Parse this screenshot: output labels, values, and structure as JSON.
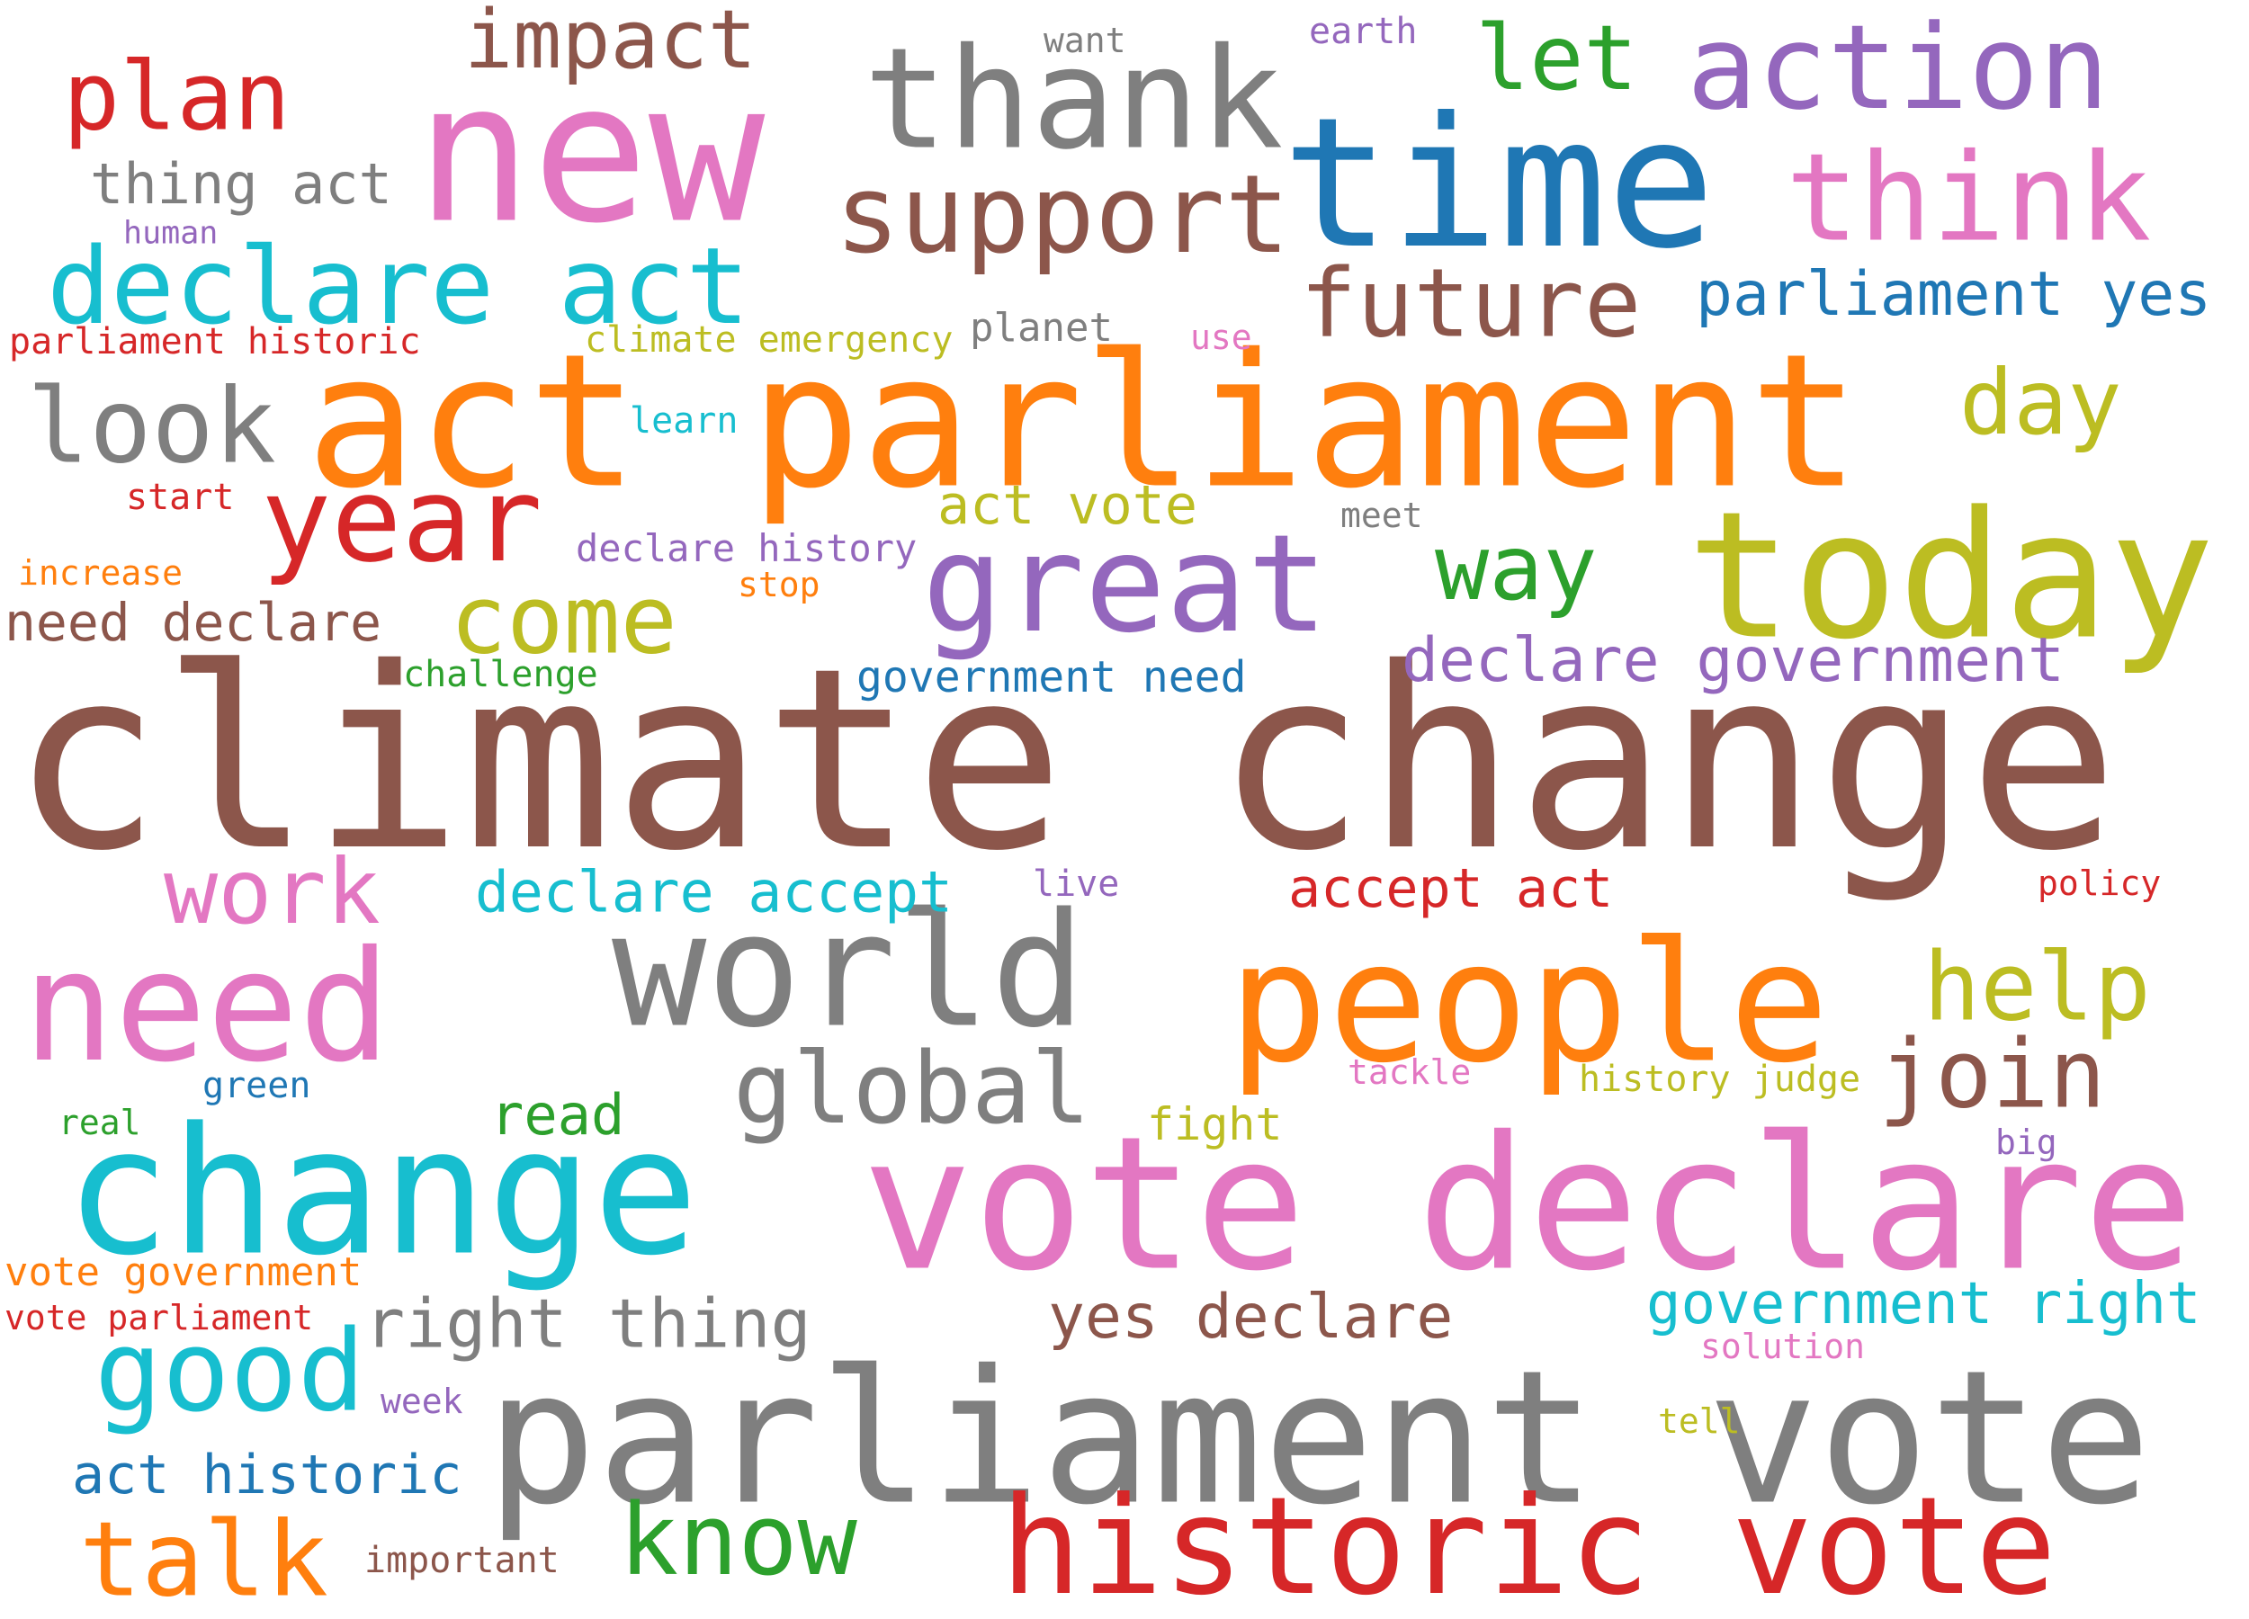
{
  "background": "#ffffff",
  "palette": {
    "brown": "#8c564b",
    "gray": "#7f7f7f",
    "orange": "#ff7f0e",
    "pink": "#e377c2",
    "red": "#d62728",
    "blue": "#1f77b4",
    "cyan": "#17becf",
    "olive": "#bcbd22",
    "green": "#2ca02c",
    "purple": "#9467bd"
  },
  "words": [
    {
      "text": "climate change",
      "color": "#8c564b"
    },
    {
      "text": "act parliament",
      "color": "#ff7f0e"
    },
    {
      "text": "parliament vote",
      "color": "#7f7f7f"
    },
    {
      "text": "vote declare",
      "color": "#e377c2"
    },
    {
      "text": "time",
      "color": "#1f77b4"
    },
    {
      "text": "new",
      "color": "#e377c2"
    },
    {
      "text": "today",
      "color": "#bcbd22"
    },
    {
      "text": "people",
      "color": "#ff7f0e"
    },
    {
      "text": "world",
      "color": "#7f7f7f"
    },
    {
      "text": "change",
      "color": "#17becf"
    },
    {
      "text": "historic vote",
      "color": "#d62728"
    },
    {
      "text": "need",
      "color": "#e377c2"
    },
    {
      "text": "thank",
      "color": "#7f7f7f"
    },
    {
      "text": "action",
      "color": "#9467bd"
    },
    {
      "text": "think",
      "color": "#e377c2"
    },
    {
      "text": "great",
      "color": "#9467bd"
    },
    {
      "text": "support",
      "color": "#8c564b"
    },
    {
      "text": "year",
      "color": "#d62728"
    },
    {
      "text": "declare act",
      "color": "#17becf"
    },
    {
      "text": "look",
      "color": "#7f7f7f"
    },
    {
      "text": "good",
      "color": "#17becf"
    },
    {
      "text": "plan",
      "color": "#d62728"
    },
    {
      "text": "future",
      "color": "#8c564b"
    },
    {
      "text": "help",
      "color": "#bcbd22"
    },
    {
      "text": "join",
      "color": "#8c564b"
    },
    {
      "text": "impact",
      "color": "#8c564b"
    },
    {
      "text": "let",
      "color": "#2ca02c"
    },
    {
      "text": "day",
      "color": "#bcbd22"
    },
    {
      "text": "come",
      "color": "#bcbd22"
    },
    {
      "text": "way",
      "color": "#2ca02c"
    },
    {
      "text": "global",
      "color": "#7f7f7f"
    },
    {
      "text": "work",
      "color": "#e377c2"
    },
    {
      "text": "know",
      "color": "#2ca02c"
    },
    {
      "text": "talk",
      "color": "#ff7f0e"
    },
    {
      "text": "declare government",
      "color": "#9467bd"
    },
    {
      "text": "parliament yes",
      "color": "#1f77b4"
    },
    {
      "text": "right thing",
      "color": "#7f7f7f"
    },
    {
      "text": "yes declare",
      "color": "#8c564b"
    },
    {
      "text": "government right",
      "color": "#17becf"
    },
    {
      "text": "thing act",
      "color": "#7f7f7f"
    },
    {
      "text": "need declare",
      "color": "#8c564b"
    },
    {
      "text": "declare accept",
      "color": "#17becf"
    },
    {
      "text": "accept act",
      "color": "#d62728"
    },
    {
      "text": "read",
      "color": "#2ca02c"
    },
    {
      "text": "act historic",
      "color": "#1f77b4"
    },
    {
      "text": "act vote",
      "color": "#bcbd22"
    },
    {
      "text": "government need",
      "color": "#1f77b4"
    },
    {
      "text": "vote government",
      "color": "#ff7f0e"
    },
    {
      "text": "fight",
      "color": "#bcbd22"
    },
    {
      "text": "declare history",
      "color": "#9467bd"
    },
    {
      "text": "climate emergency",
      "color": "#bcbd22"
    },
    {
      "text": "parliament historic",
      "color": "#d62728"
    },
    {
      "text": "history judge",
      "color": "#bcbd22"
    },
    {
      "text": "important",
      "color": "#8c564b"
    },
    {
      "text": "planet",
      "color": "#7f7f7f"
    },
    {
      "text": "learn",
      "color": "#17becf"
    },
    {
      "text": "start",
      "color": "#d62728"
    },
    {
      "text": "increase",
      "color": "#ff7f0e"
    },
    {
      "text": "stop",
      "color": "#ff7f0e"
    },
    {
      "text": "challenge",
      "color": "#2ca02c"
    },
    {
      "text": "meet",
      "color": "#7f7f7f"
    },
    {
      "text": "live",
      "color": "#9467bd"
    },
    {
      "text": "tackle",
      "color": "#e377c2"
    },
    {
      "text": "green",
      "color": "#1f77b4"
    },
    {
      "text": "real",
      "color": "#2ca02c"
    },
    {
      "text": "week",
      "color": "#9467bd"
    },
    {
      "text": "solution",
      "color": "#e377c2"
    },
    {
      "text": "tell",
      "color": "#bcbd22"
    },
    {
      "text": "vote parliament",
      "color": "#d62728"
    },
    {
      "text": "human",
      "color": "#9467bd"
    },
    {
      "text": "earth",
      "color": "#9467bd"
    },
    {
      "text": "want",
      "color": "#7f7f7f"
    },
    {
      "text": "use",
      "color": "#e377c2"
    },
    {
      "text": "policy",
      "color": "#d62728"
    },
    {
      "text": "big",
      "color": "#9467bd"
    }
  ]
}
